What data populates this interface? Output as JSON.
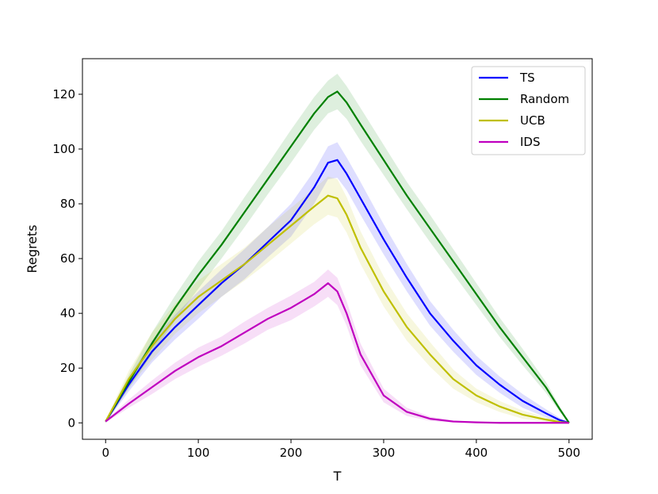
{
  "chart_data": {
    "type": "line",
    "title": "",
    "xlabel": "T",
    "ylabel": "Regrets",
    "xlim": [
      -25,
      525
    ],
    "ylim": [
      -6,
      133
    ],
    "xticks": [
      0,
      100,
      200,
      300,
      400,
      500
    ],
    "yticks": [
      0,
      20,
      40,
      60,
      80,
      100,
      120
    ],
    "grid": false,
    "legend_position": "top-right",
    "series": [
      {
        "name": "TS",
        "color": "#0000ff",
        "x": [
          0,
          25,
          50,
          75,
          100,
          125,
          150,
          175,
          200,
          225,
          240,
          250,
          260,
          275,
          300,
          325,
          350,
          375,
          400,
          425,
          450,
          475,
          490,
          500
        ],
        "y": [
          0.5,
          14,
          26,
          35,
          43,
          51,
          58,
          66,
          74,
          86,
          95,
          96,
          91,
          82,
          67,
          53,
          40,
          30,
          21,
          14,
          8,
          3.5,
          1,
          0
        ],
        "band": [
          0.5,
          2.5,
          4,
          4.5,
          5,
          5,
          5.5,
          5.5,
          6,
          6,
          6,
          6.5,
          6,
          6,
          5.5,
          5,
          4.5,
          4,
          3.5,
          3,
          2.5,
          1.5,
          0.8,
          0.3
        ]
      },
      {
        "name": "Random",
        "color": "#008000",
        "x": [
          0,
          25,
          50,
          75,
          100,
          125,
          150,
          175,
          200,
          225,
          240,
          250,
          260,
          275,
          300,
          325,
          350,
          375,
          400,
          425,
          450,
          475,
          490,
          500
        ],
        "y": [
          0.5,
          15,
          29,
          42,
          54,
          65,
          77,
          89,
          101,
          113,
          119,
          121,
          117,
          109,
          96,
          83,
          71,
          59,
          47,
          35,
          24,
          13,
          5,
          0
        ],
        "band": [
          0.5,
          2.5,
          4,
          4.5,
          5,
          5,
          5.5,
          5.5,
          6,
          6,
          6,
          6.5,
          6,
          6,
          5.5,
          5,
          5,
          4.5,
          4,
          3.5,
          3,
          2,
          1,
          0.3
        ]
      },
      {
        "name": "UCB",
        "color": "#bfbf00",
        "x": [
          0,
          25,
          50,
          75,
          100,
          125,
          150,
          175,
          200,
          225,
          240,
          250,
          260,
          275,
          300,
          325,
          350,
          375,
          400,
          425,
          450,
          475,
          490,
          500
        ],
        "y": [
          0.5,
          16,
          28,
          38,
          46,
          52,
          58,
          65,
          72,
          79,
          83,
          82,
          76,
          64,
          48,
          35,
          25,
          16,
          10,
          6,
          3,
          1.2,
          0.3,
          0
        ],
        "band": [
          0.5,
          3,
          5,
          5.5,
          6,
          6,
          6,
          6.5,
          6.5,
          6.5,
          7,
          7,
          6.5,
          6,
          5.5,
          5,
          4.5,
          3.5,
          2.5,
          2,
          1.5,
          0.8,
          0.3,
          0.2
        ]
      },
      {
        "name": "IDS",
        "color": "#bf00bf",
        "x": [
          0,
          25,
          50,
          75,
          100,
          125,
          150,
          175,
          200,
          225,
          240,
          250,
          260,
          275,
          300,
          325,
          350,
          375,
          400,
          425,
          450,
          475,
          490,
          500
        ],
        "y": [
          0.5,
          7,
          13,
          19,
          24,
          28,
          33,
          38,
          42,
          47,
          51,
          48,
          40,
          25,
          10,
          4,
          1.5,
          0.5,
          0.2,
          0,
          0,
          0,
          0,
          0
        ],
        "band": [
          0.4,
          1.5,
          2.5,
          3,
          3.5,
          3.5,
          4,
          4,
          4.5,
          4.5,
          5,
          5,
          4.5,
          4,
          2.5,
          1.5,
          0.8,
          0.4,
          0.2,
          0.1,
          0.1,
          0.1,
          0.1,
          0.1
        ]
      }
    ]
  }
}
